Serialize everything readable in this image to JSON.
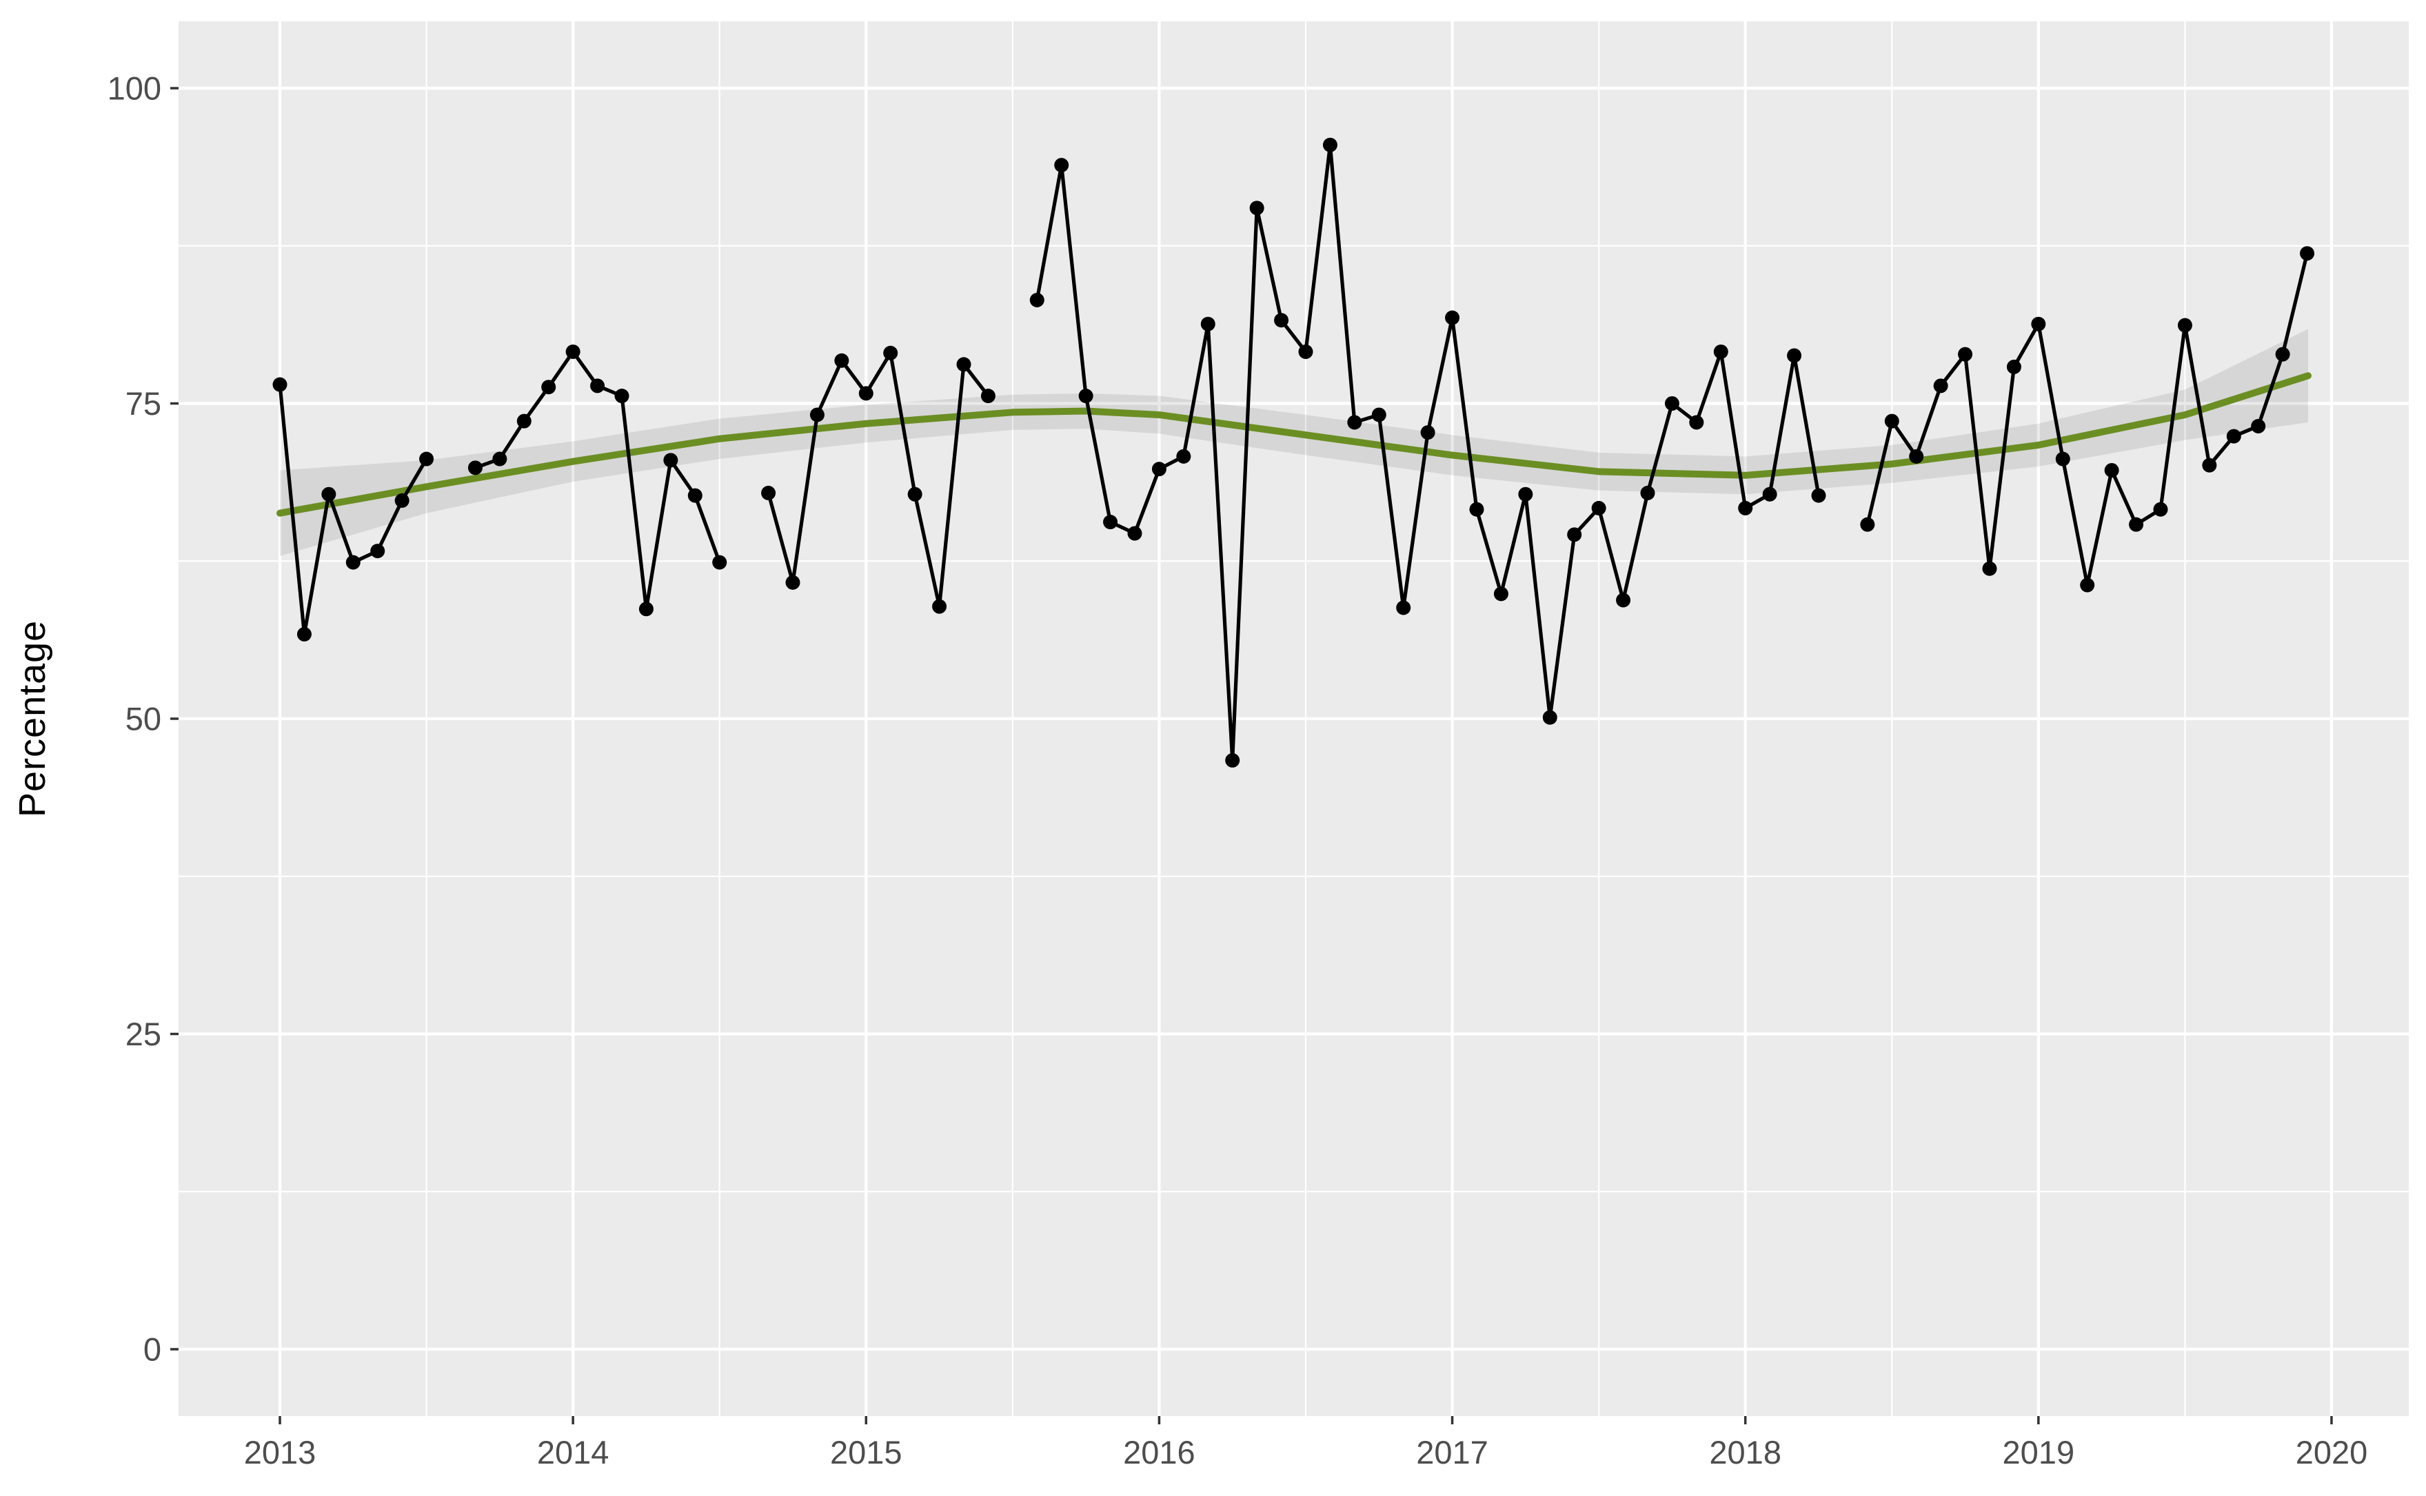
{
  "chart_data": {
    "type": "line",
    "title": "",
    "xlabel": "",
    "ylabel": "Percentage",
    "start_month": "2013-01",
    "end_month": "2019-12",
    "note": "monthly series; null = missing month (visible break in line): 2013-08, 2014-08, 2015-07, 2018-05",
    "values": [
      76.5,
      56.7,
      67.8,
      62.4,
      63.3,
      67.3,
      70.6,
      null,
      69.9,
      70.6,
      73.6,
      76.3,
      79.1,
      76.4,
      75.6,
      58.7,
      70.5,
      67.7,
      62.4,
      null,
      67.9,
      60.8,
      74.1,
      78.4,
      75.8,
      79.0,
      67.8,
      58.9,
      78.1,
      75.6,
      null,
      83.2,
      93.9,
      75.6,
      65.6,
      64.7,
      69.8,
      70.8,
      81.3,
      46.7,
      90.5,
      81.6,
      79.1,
      95.5,
      73.5,
      74.1,
      58.8,
      72.7,
      81.8,
      66.6,
      59.9,
      67.8,
      50.1,
      64.6,
      66.7,
      59.4,
      67.9,
      75.0,
      73.5,
      79.1,
      66.7,
      67.8,
      78.8,
      67.7,
      null,
      65.4,
      73.6,
      70.8,
      76.4,
      78.9,
      61.9,
      77.9,
      81.3,
      70.6,
      60.6,
      69.7,
      65.4,
      66.6,
      81.2,
      70.1,
      72.4,
      73.2,
      78.9,
      86.9
    ],
    "ylim": [
      0,
      100
    ],
    "y_major_ticks": [
      0,
      25,
      50,
      75,
      100
    ],
    "y_minor_ticks": [
      12.5,
      37.5,
      62.5,
      87.5
    ],
    "x_major_ticks": [
      2013,
      2014,
      2015,
      2016,
      2017,
      2018,
      2019,
      2020
    ],
    "x_minor_ticks": [
      2013.5,
      2014.5,
      2015.5,
      2016.5,
      2017.5,
      2018.5,
      2019.5
    ],
    "grid": true,
    "legend": "none",
    "smooth": {
      "label": "loess trend",
      "x": [
        2013.0,
        2013.5,
        2014.0,
        2014.5,
        2015.0,
        2015.5,
        2015.75,
        2016.0,
        2016.5,
        2017.0,
        2017.5,
        2018.0,
        2018.5,
        2019.0,
        2019.5,
        2019.92
      ],
      "y": [
        66.3,
        68.4,
        70.4,
        72.2,
        73.4,
        74.3,
        74.4,
        74.1,
        72.5,
        70.9,
        69.6,
        69.3,
        70.2,
        71.7,
        74.1,
        77.2
      ]
    },
    "ribbon": {
      "label": "confidence band",
      "x": [
        2013.0,
        2013.5,
        2014.0,
        2014.5,
        2015.0,
        2015.5,
        2015.75,
        2016.0,
        2016.5,
        2017.0,
        2017.5,
        2018.0,
        2018.5,
        2019.0,
        2019.5,
        2019.92
      ],
      "lower": [
        62.9,
        66.3,
        68.8,
        70.6,
        71.9,
        72.9,
        73.0,
        72.6,
        70.9,
        69.3,
        68.1,
        67.8,
        68.7,
        70.0,
        72.1,
        73.5
      ],
      "upper": [
        69.7,
        70.5,
        72.0,
        73.8,
        74.9,
        75.7,
        75.8,
        75.6,
        74.1,
        72.5,
        71.1,
        70.8,
        71.7,
        73.4,
        76.1,
        80.9
      ]
    },
    "colors": {
      "points": "#000000",
      "line": "#000000",
      "smooth": "#6B8E23",
      "ribbon": "rgba(0,0,0,0.085)",
      "panel": "#EBEBEB",
      "grid": "#FFFFFF",
      "tick_text": "#4D4D4D",
      "tick_mark": "#333333",
      "axis_title": "#000000"
    }
  }
}
